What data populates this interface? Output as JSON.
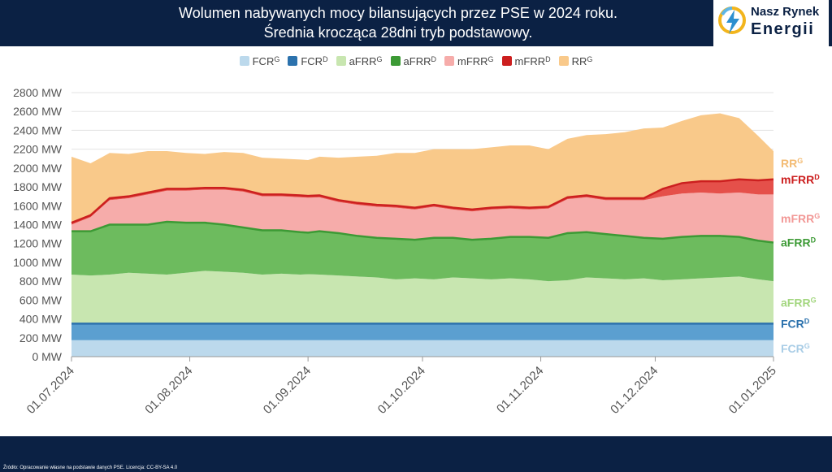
{
  "header": {
    "title_line1": "Wolumen nabywanych mocy bilansujących przez PSE w 2024 roku.",
    "title_line2": "Średnia krocząca 28dni tryb podstawowy.",
    "logo_line1": "Nasz Rynek",
    "logo_line2": "Energii"
  },
  "footer": {
    "source": "Źródło: Opracowanie własne na podstawie danych PSE. Licencja: CC-BY-SA 4.0"
  },
  "chart_data": {
    "type": "area",
    "stacked": true,
    "legend_position": "top",
    "grid": true,
    "ylim": [
      0,
      2800
    ],
    "y_tick_step": 200,
    "y_unit": "MW",
    "x_ticks": [
      "01.07.2024",
      "01.08.2024",
      "01.09.2024",
      "01.10.2024",
      "01.11.2024",
      "01.12.2024",
      "01.01.2025"
    ],
    "x_tick_days": [
      0,
      31,
      62,
      92,
      123,
      153,
      184
    ],
    "x_days": [
      0,
      5,
      10,
      15,
      20,
      25,
      30,
      35,
      40,
      45,
      50,
      55,
      60,
      62,
      65,
      70,
      75,
      80,
      85,
      90,
      95,
      100,
      105,
      110,
      115,
      120,
      125,
      130,
      135,
      140,
      145,
      150,
      155,
      160,
      165,
      170,
      175,
      180,
      184
    ],
    "series": [
      {
        "name": "FCR",
        "sup": "G",
        "color": "#bcd9ec",
        "end_label_color": "#a9cde6",
        "values": [
          175,
          175,
          175,
          175,
          175,
          175,
          175,
          175,
          175,
          175,
          175,
          175,
          175,
          175,
          175,
          175,
          175,
          175,
          175,
          175,
          175,
          175,
          175,
          175,
          175,
          175,
          175,
          175,
          175,
          175,
          175,
          175,
          175,
          175,
          175,
          175,
          175,
          175,
          175
        ]
      },
      {
        "name": "FCR",
        "sup": "D",
        "color": "#5b9fd0",
        "line": "#2c72ad",
        "end_label_color": "#2c72ad",
        "values": [
          175,
          175,
          175,
          175,
          175,
          175,
          175,
          175,
          175,
          175,
          175,
          175,
          175,
          175,
          175,
          175,
          175,
          175,
          175,
          175,
          175,
          175,
          175,
          175,
          175,
          175,
          175,
          175,
          175,
          175,
          175,
          175,
          175,
          175,
          175,
          175,
          175,
          175,
          175
        ]
      },
      {
        "name": "aFRR",
        "sup": "G",
        "color": "#c8e6b0",
        "end_label_color": "#a3d67f",
        "values": [
          520,
          510,
          520,
          540,
          530,
          520,
          540,
          560,
          550,
          540,
          520,
          530,
          520,
          525,
          520,
          510,
          500,
          490,
          470,
          480,
          470,
          490,
          480,
          470,
          480,
          470,
          450,
          460,
          490,
          480,
          470,
          480,
          460,
          470,
          480,
          490,
          500,
          470,
          450
        ]
      },
      {
        "name": "aFRR",
        "sup": "D",
        "color": "#6dbb5e",
        "line": "#3c9a35",
        "end_label_color": "#3c9a35",
        "values": [
          460,
          470,
          530,
          510,
          520,
          560,
          530,
          510,
          500,
          480,
          470,
          460,
          450,
          440,
          460,
          450,
          430,
          420,
          430,
          410,
          440,
          420,
          410,
          430,
          440,
          450,
          460,
          500,
          480,
          470,
          460,
          430,
          440,
          450,
          450,
          440,
          420,
          410,
          410
        ]
      },
      {
        "name": "mFRR",
        "sup": "G",
        "color": "#f6acaa",
        "end_label_color": "#f29896",
        "values": [
          70,
          150,
          260,
          280,
          320,
          330,
          340,
          350,
          370,
          380,
          360,
          360,
          370,
          370,
          360,
          330,
          330,
          330,
          330,
          320,
          330,
          300,
          300,
          310,
          300,
          290,
          310,
          360,
          370,
          360,
          380,
          400,
          450,
          460,
          460,
          450,
          470,
          490,
          510
        ]
      },
      {
        "name": "mFRR",
        "sup": "D",
        "color": "#e5504a",
        "line": "#cc1f1f",
        "end_label_color": "#cc1f1f",
        "values": [
          20,
          20,
          20,
          20,
          20,
          20,
          20,
          20,
          20,
          20,
          20,
          20,
          20,
          20,
          20,
          20,
          20,
          20,
          20,
          20,
          20,
          20,
          20,
          20,
          20,
          20,
          20,
          20,
          20,
          20,
          20,
          20,
          80,
          110,
          120,
          130,
          140,
          150,
          160
        ]
      },
      {
        "name": "RR",
        "sup": "G",
        "color": "#f9c98a",
        "end_label_color": "#f3bb73",
        "values": [
          700,
          550,
          480,
          450,
          440,
          400,
          380,
          360,
          380,
          390,
          390,
          380,
          380,
          380,
          410,
          450,
          490,
          520,
          560,
          580,
          590,
          620,
          640,
          640,
          650,
          660,
          610,
          620,
          640,
          680,
          700,
          740,
          650,
          660,
          700,
          720,
          650,
          470,
          300
        ]
      }
    ]
  }
}
